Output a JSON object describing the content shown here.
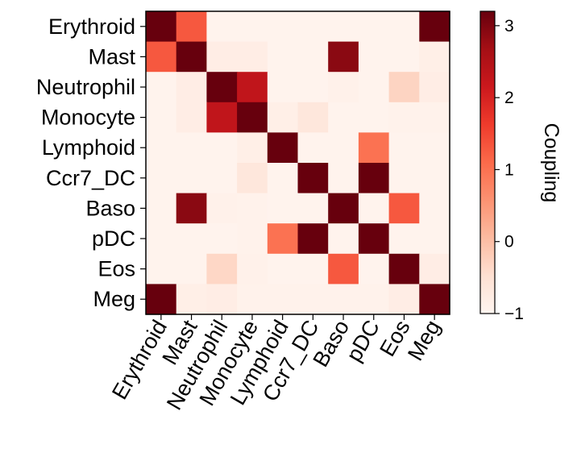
{
  "chart_data": {
    "type": "heatmap",
    "title": "",
    "xlabel": "",
    "ylabel": "",
    "categories": [
      "Erythroid",
      "Mast",
      "Neutrophil",
      "Monocyte",
      "Lymphoid",
      "Ccr7_DC",
      "Baso",
      "pDC",
      "Eos",
      "Meg"
    ],
    "rows": [
      "Erythroid",
      "Mast",
      "Neutrophil",
      "Monocyte",
      "Lymphoid",
      "Ccr7_DC",
      "Baso",
      "pDC",
      "Eos",
      "Meg"
    ],
    "values": [
      [
        3.2,
        1.3,
        -0.95,
        -0.95,
        -0.95,
        -0.95,
        -0.95,
        -0.95,
        -0.95,
        3.2
      ],
      [
        1.3,
        3.2,
        -0.8,
        -0.8,
        -0.95,
        -0.95,
        2.9,
        -0.95,
        -0.95,
        -0.85
      ],
      [
        -0.95,
        -0.8,
        3.2,
        2.3,
        -0.95,
        -0.95,
        -0.9,
        -0.95,
        -0.3,
        -0.8
      ],
      [
        -0.95,
        -0.8,
        2.3,
        3.2,
        -0.85,
        -0.65,
        -0.95,
        -0.95,
        -0.92,
        -0.92
      ],
      [
        -0.95,
        -0.95,
        -0.95,
        -0.85,
        3.2,
        -0.95,
        -0.95,
        1.0,
        -0.95,
        -0.95
      ],
      [
        -0.95,
        -0.95,
        -0.95,
        -0.65,
        -0.95,
        3.2,
        -0.95,
        3.2,
        -0.95,
        -0.95
      ],
      [
        -0.95,
        2.9,
        -0.9,
        -0.92,
        -0.95,
        -0.95,
        3.2,
        -0.95,
        1.3,
        -0.95
      ],
      [
        -0.95,
        -0.95,
        -0.95,
        -0.92,
        1.0,
        3.2,
        -0.95,
        3.2,
        -0.95,
        -0.95
      ],
      [
        -0.95,
        -0.95,
        -0.35,
        -0.9,
        -0.95,
        -0.95,
        1.3,
        -0.95,
        3.2,
        -0.8
      ],
      [
        3.2,
        -0.85,
        -0.8,
        -0.92,
        -0.92,
        -0.92,
        -0.92,
        -0.92,
        -0.8,
        3.2
      ]
    ],
    "colorbar": {
      "label": "Coupling",
      "min": -1,
      "max": 3.2,
      "ticks": [
        -1,
        0,
        1,
        2,
        3
      ],
      "colormap": "Reds"
    }
  }
}
